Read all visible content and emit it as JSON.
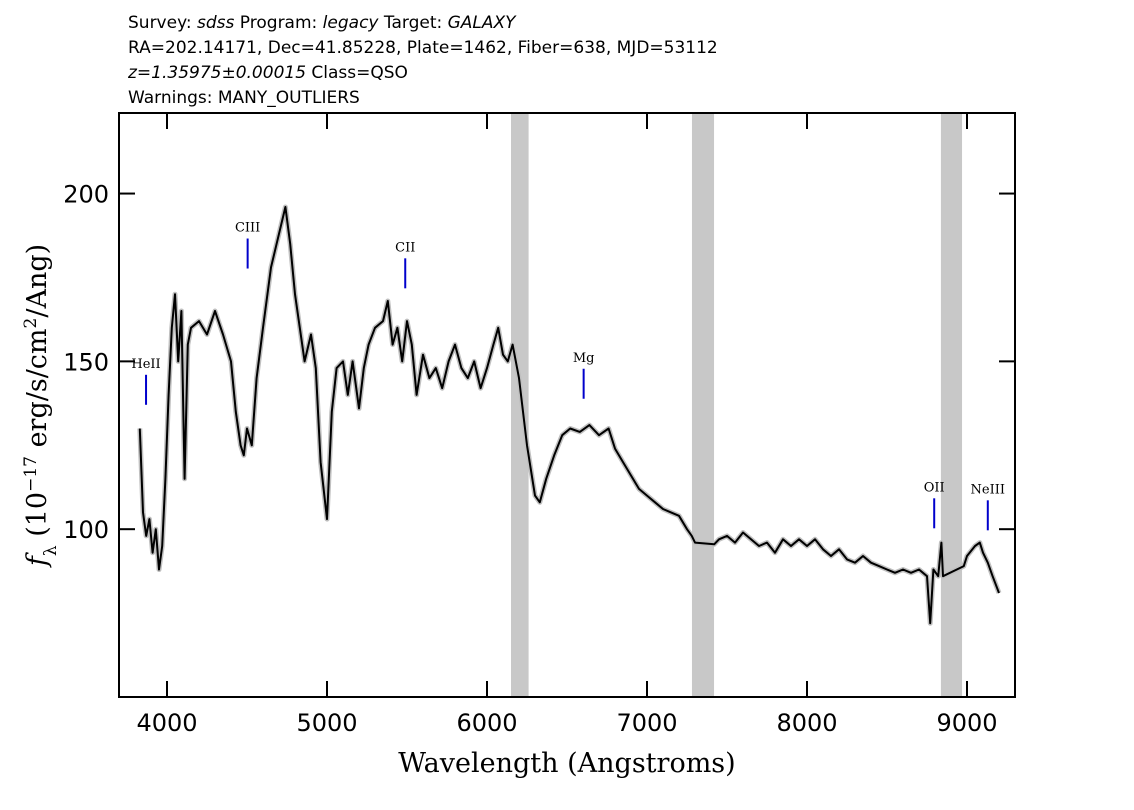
{
  "chart_data": {
    "type": "line",
    "header_lines": [
      [
        {
          "text": "Survey: "
        },
        {
          "text": "sdss",
          "italic": true
        },
        {
          "text": " Program: "
        },
        {
          "text": "legacy",
          "italic": true
        },
        {
          "text": " Target: "
        },
        {
          "text": "GALAXY",
          "italic": true
        }
      ],
      [
        {
          "text": "RA=202.14171, Dec=41.85228, Plate=1462, Fiber=638, MJD=53112"
        }
      ],
      [
        {
          "text": "z=1.35975±0.00015",
          "italic": true
        },
        {
          "text": " Class=QSO"
        }
      ],
      [
        {
          "text": "Warnings: MANY_OUTLIERS"
        }
      ]
    ],
    "x_label": "Wavelength (Angstroms)",
    "y_label": [
      {
        "text": "f",
        "italic": true
      },
      {
        "text": "λ",
        "script": "sub"
      },
      {
        "text": " (10"
      },
      {
        "text": "−17",
        "script": "sup"
      },
      {
        "text": " erg/s/cm"
      },
      {
        "text": "2",
        "script": "sup"
      },
      {
        "text": "/Ang)"
      }
    ],
    "xlim": [
      3700,
      9300
    ],
    "ylim": [
      50,
      224
    ],
    "xticks": [
      4000,
      5000,
      6000,
      7000,
      8000,
      9000
    ],
    "yticks": [
      100,
      150,
      200
    ],
    "shaded_regions": [
      [
        6150,
        6260
      ],
      [
        7281,
        7419
      ],
      [
        8837,
        8969
      ]
    ],
    "shade_color": "#c8c8c8",
    "annotation_color": "#0000cc",
    "annotations": [
      {
        "label": "HeII",
        "x": 3869,
        "y": 146
      },
      {
        "label": "CIII",
        "x": 4504,
        "y": 186.6
      },
      {
        "label": "CII",
        "x": 5489,
        "y": 180.7
      },
      {
        "label": "Mg",
        "x": 6604,
        "y": 147.8
      },
      {
        "label": "OII",
        "x": 8795,
        "y": 109.2
      },
      {
        "label": "NeIII",
        "x": 9130,
        "y": 108.6
      }
    ],
    "series": [
      {
        "color": "#000000",
        "x": [
          3830,
          3850,
          3870,
          3890,
          3910,
          3930,
          3950,
          3970,
          3990,
          4010,
          4030,
          4050,
          4070,
          4090,
          4110,
          4130,
          4150,
          4200,
          4250,
          4300,
          4350,
          4400,
          4430,
          4460,
          4480,
          4500,
          4530,
          4560,
          4600,
          4650,
          4700,
          4740,
          4770,
          4800,
          4830,
          4860,
          4900,
          4930,
          4960,
          5000,
          5030,
          5060,
          5100,
          5130,
          5160,
          5200,
          5230,
          5260,
          5300,
          5350,
          5380,
          5410,
          5440,
          5470,
          5500,
          5530,
          5560,
          5600,
          5640,
          5680,
          5720,
          5760,
          5800,
          5840,
          5880,
          5920,
          5960,
          6000,
          6040,
          6070,
          6100,
          6130,
          6160,
          6200,
          6250,
          6300,
          6330,
          6370,
          6420,
          6470,
          6520,
          6580,
          6640,
          6700,
          6760,
          6800,
          6850,
          6900,
          6950,
          7000,
          7050,
          7100,
          7150,
          7200,
          7250,
          7280,
          7300,
          7420,
          7450,
          7500,
          7550,
          7600,
          7650,
          7700,
          7750,
          7800,
          7850,
          7900,
          7950,
          8000,
          8050,
          8100,
          8150,
          8200,
          8250,
          8300,
          8350,
          8400,
          8450,
          8500,
          8550,
          8600,
          8650,
          8700,
          8750,
          8770,
          8790,
          8820,
          8840,
          8850,
          8980,
          9000,
          9050,
          9080,
          9100,
          9130,
          9160,
          9200
        ],
        "values": [
          130,
          105,
          98,
          103,
          93,
          100,
          88,
          95,
          115,
          140,
          160,
          170,
          150,
          165,
          115,
          155,
          160,
          162,
          158,
          165,
          158,
          150,
          135,
          125,
          122,
          130,
          125,
          145,
          160,
          178,
          188,
          196,
          185,
          170,
          160,
          150,
          158,
          148,
          120,
          103,
          135,
          148,
          150,
          140,
          150,
          136,
          148,
          155,
          160,
          162,
          168,
          155,
          160,
          150,
          162,
          155,
          140,
          152,
          145,
          148,
          142,
          150,
          155,
          148,
          145,
          150,
          142,
          148,
          155,
          160,
          152,
          150,
          155,
          145,
          125,
          110,
          108,
          115,
          122,
          128,
          130,
          129,
          131,
          128,
          130,
          124,
          120,
          116,
          112,
          110,
          108,
          106,
          105,
          104,
          100,
          98,
          96,
          95.5,
          97,
          98,
          96,
          99,
          97,
          95,
          96,
          93,
          97,
          95,
          97,
          95,
          97,
          94,
          92,
          94,
          91,
          90,
          92,
          90,
          89,
          88,
          87,
          88,
          87,
          88,
          86,
          72,
          88,
          86,
          96,
          86,
          89,
          92,
          95,
          96,
          93,
          90,
          86,
          81
        ]
      }
    ]
  }
}
